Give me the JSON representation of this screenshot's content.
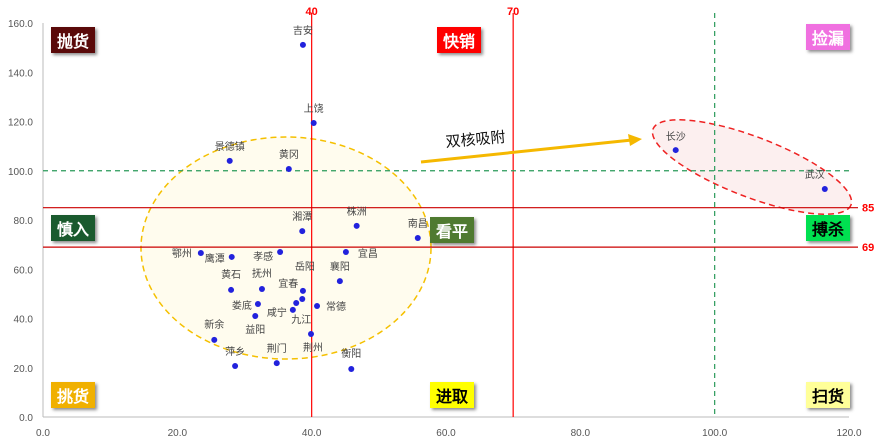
{
  "chart_data": {
    "type": "scatter",
    "xlim": [
      0,
      120
    ],
    "ylim": [
      0,
      160
    ],
    "x_ticks": [
      "0.0",
      "20.0",
      "40.0",
      "60.0",
      "80.0",
      "100.0",
      "120.0"
    ],
    "y_ticks": [
      "0.0",
      "20.0",
      "40.0",
      "60.0",
      "80.0",
      "100.0",
      "120.0",
      "140.0",
      "160.0"
    ],
    "grid": false,
    "point_color": "#2222dd",
    "points": [
      {
        "label": "吉安",
        "x": 38.7,
        "y": 151.1
      },
      {
        "label": "上饶",
        "x": 40.3,
        "y": 119.4
      },
      {
        "label": "景德镇",
        "x": 27.8,
        "y": 104.0
      },
      {
        "label": "黄冈",
        "x": 36.6,
        "y": 100.7
      },
      {
        "label": "湘潭",
        "x": 38.6,
        "y": 75.5
      },
      {
        "label": "株洲",
        "x": 46.7,
        "y": 77.6
      },
      {
        "label": "南昌",
        "x": 55.8,
        "y": 72.7
      },
      {
        "label": "鄂州",
        "x": 23.5,
        "y": 66.6
      },
      {
        "label": "鹰潭",
        "x": 28.1,
        "y": 65.0
      },
      {
        "label": "孝感",
        "x": 35.3,
        "y": 67.0
      },
      {
        "label": "宜昌",
        "x": 45.1,
        "y": 67.0
      },
      {
        "label": "岳阳",
        "x": 38.7,
        "y": 51.2
      },
      {
        "label": "襄阳",
        "x": 44.2,
        "y": 55.2
      },
      {
        "label": "黄石",
        "x": 28.0,
        "y": 51.6
      },
      {
        "label": "抚州",
        "x": 32.6,
        "y": 52.0
      },
      {
        "label": "宜春",
        "x": 38.6,
        "y": 47.9
      },
      {
        "label": "娄底",
        "x": 32.0,
        "y": 45.9
      },
      {
        "label": "九江",
        "x": 37.7,
        "y": 46.3
      },
      {
        "label": "咸宁",
        "x": 37.2,
        "y": 43.5
      },
      {
        "label": "常德",
        "x": 40.8,
        "y": 45.1
      },
      {
        "label": "益阳",
        "x": 31.6,
        "y": 41.0
      },
      {
        "label": "新余",
        "x": 25.5,
        "y": 31.3
      },
      {
        "label": "荆州",
        "x": 39.9,
        "y": 33.7
      },
      {
        "label": "萍乡",
        "x": 28.6,
        "y": 20.7
      },
      {
        "label": "荆门",
        "x": 34.8,
        "y": 21.9
      },
      {
        "label": "衡阳",
        "x": 45.9,
        "y": 19.5
      },
      {
        "label": "长沙",
        "x": 94.2,
        "y": 108.4
      },
      {
        "label": "武汉",
        "x": 116.4,
        "y": 92.6
      }
    ],
    "reference_lines": [
      {
        "axis": "x",
        "value": 40,
        "label": "40",
        "style": "solid",
        "color": "#ff0000"
      },
      {
        "axis": "x",
        "value": 70,
        "label": "70",
        "style": "solid",
        "color": "#ff0000"
      },
      {
        "axis": "x",
        "value": 100,
        "label": "",
        "style": "dashed",
        "color": "#2a9a5a"
      },
      {
        "axis": "y",
        "value": 85,
        "label": "85",
        "style": "solid",
        "color": "#cc0000"
      },
      {
        "axis": "y",
        "value": 69,
        "label": "69",
        "style": "solid",
        "color": "#cc0000"
      },
      {
        "axis": "y",
        "value": 100,
        "label": "",
        "style": "dashed",
        "color": "#2a9a5a"
      }
    ],
    "annotation": "双核吸附",
    "quadrants": [
      {
        "label": "抛货",
        "bg": "#5a0a0a",
        "fg": "#ffffff"
      },
      {
        "label": "快销",
        "bg": "#ff0000",
        "fg": "#ffffff"
      },
      {
        "label": "捡漏",
        "bg": "#f070e0",
        "fg": "#ffffff"
      },
      {
        "label": "慎入",
        "bg": "#1a5a2e",
        "fg": "#ffffff"
      },
      {
        "label": "看平",
        "bg": "#4f7a30",
        "fg": "#ffffff"
      },
      {
        "label": "搏杀",
        "bg": "#00e050",
        "fg": "#000000"
      },
      {
        "label": "挑货",
        "bg": "#f0b000",
        "fg": "#ffffff"
      },
      {
        "label": "进取",
        "bg": "#ffff00",
        "fg": "#000000"
      },
      {
        "label": "扫货",
        "bg": "#ffff99",
        "fg": "#000000"
      }
    ]
  }
}
